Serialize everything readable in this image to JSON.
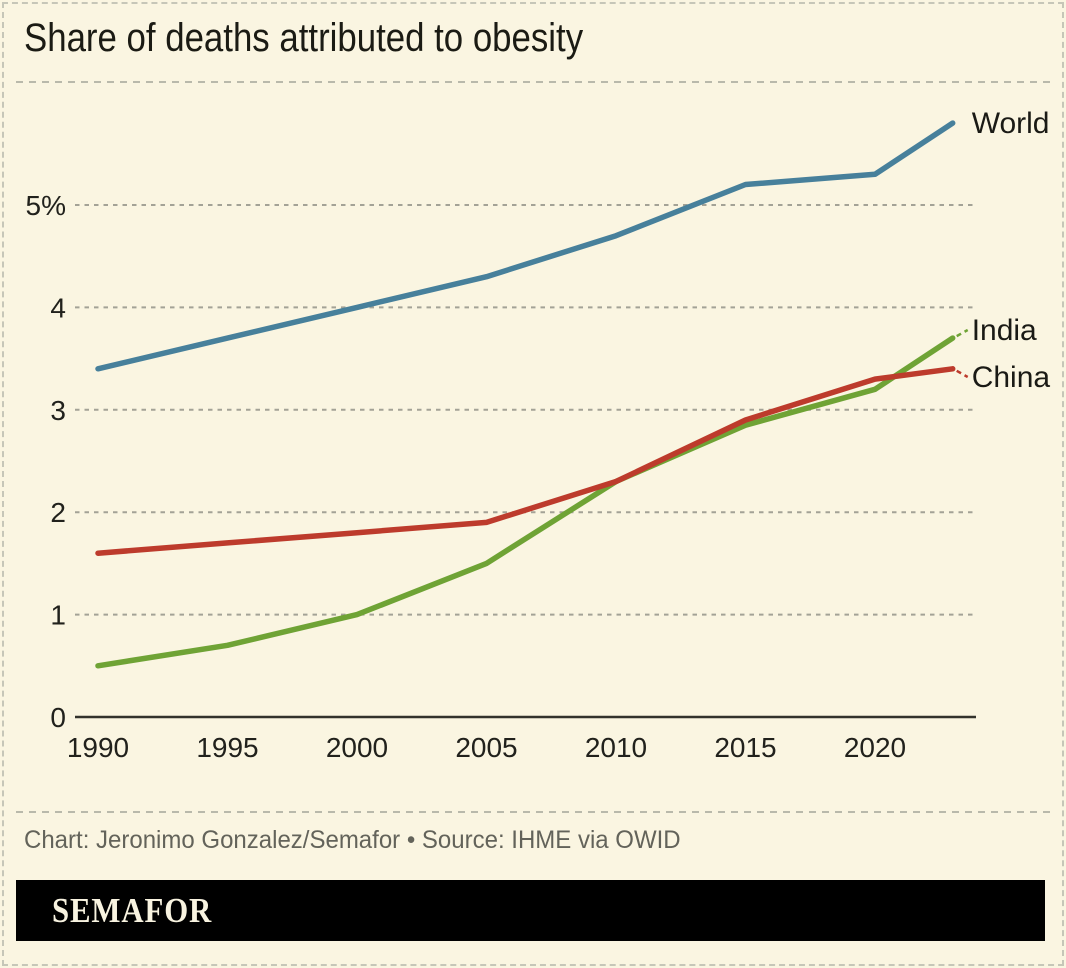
{
  "title": "Share of deaths attributed to obesity",
  "chart_data": {
    "type": "line",
    "title": "Share of deaths attributed to obesity",
    "x": [
      1990,
      1995,
      2000,
      2005,
      2010,
      2015,
      2020,
      2023
    ],
    "series": [
      {
        "name": "World",
        "color": "#47809b",
        "values": [
          3.4,
          3.7,
          4.0,
          4.3,
          4.7,
          5.2,
          5.3,
          5.8
        ]
      },
      {
        "name": "India",
        "color": "#6fa335",
        "values": [
          0.5,
          0.7,
          1.0,
          1.5,
          2.3,
          2.85,
          3.2,
          3.7
        ]
      },
      {
        "name": "China",
        "color": "#bd3b2c",
        "values": [
          1.6,
          1.7,
          1.8,
          1.9,
          2.3,
          2.9,
          3.3,
          3.4
        ]
      }
    ],
    "xlabel": "",
    "ylabel": "",
    "ylim": [
      0,
      5.9
    ],
    "xlim": [
      1990,
      2023
    ],
    "yticks": [
      {
        "value": 0,
        "label": "0"
      },
      {
        "value": 1,
        "label": "1"
      },
      {
        "value": 2,
        "label": "2"
      },
      {
        "value": 3,
        "label": "3"
      },
      {
        "value": 4,
        "label": "4"
      },
      {
        "value": 5,
        "label": "5%"
      }
    ],
    "xticks": [
      {
        "value": 1990,
        "label": "1990"
      },
      {
        "value": 1995,
        "label": "1995"
      },
      {
        "value": 2000,
        "label": "2000"
      },
      {
        "value": 2005,
        "label": "2005"
      },
      {
        "value": 2010,
        "label": "2010"
      },
      {
        "value": 2015,
        "label": "2015"
      },
      {
        "value": 2020,
        "label": "2020"
      }
    ],
    "grid": "horizontal-dashed",
    "legend_position": "line-end-labels-right"
  },
  "footer": {
    "credit": "Chart: Jeronimo Gonzalez/Semafor • Source: IHME via OWID"
  },
  "logo": {
    "text": "SEMAFOR"
  },
  "colors": {
    "background": "#faf5e1",
    "gridline": "#a3a296",
    "axis": "#32322b",
    "title_text": "#1b1b14",
    "tick_text": "#21211c",
    "muted_text": "#63635a",
    "logo_bar": "#000000",
    "border_dash": "#c6c6b8",
    "world": "#47809b",
    "india": "#6fa335",
    "china": "#bd3b2c"
  }
}
